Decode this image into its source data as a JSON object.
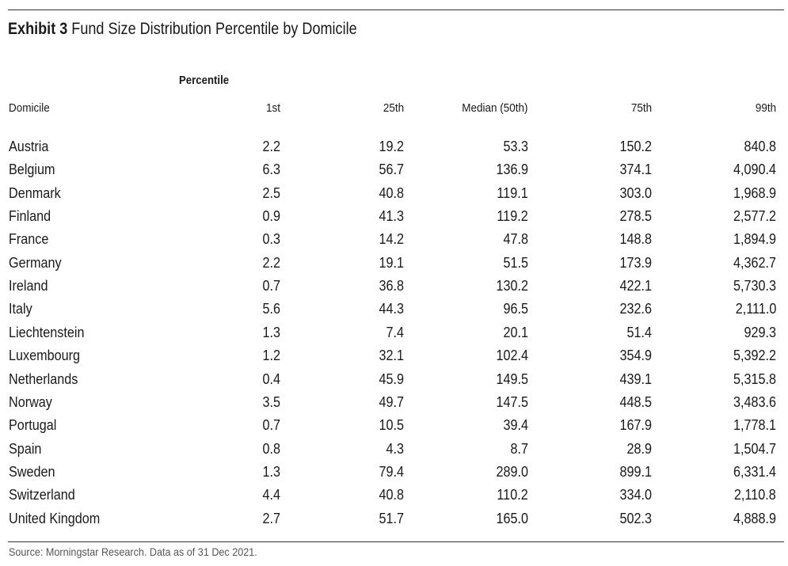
{
  "title": {
    "exhibit": "Exhibit 3",
    "text": "Fund Size Distribution Percentile by Domicile"
  },
  "source": "Source: Morningstar Research. Data as of 31 Dec 2021.",
  "chart_data": {
    "type": "table",
    "group_label": "Percentile",
    "columns": [
      "Domicile",
      "1st",
      "25th",
      "Median (50th)",
      "75th",
      "99th"
    ],
    "rows": [
      [
        "Austria",
        "2.2",
        "19.2",
        "53.3",
        "150.2",
        "840.8"
      ],
      [
        "Belgium",
        "6.3",
        "56.7",
        "136.9",
        "374.1",
        "4,090.4"
      ],
      [
        "Denmark",
        "2.5",
        "40.8",
        "119.1",
        "303.0",
        "1,968.9"
      ],
      [
        "Finland",
        "0.9",
        "41.3",
        "119.2",
        "278.5",
        "2,577.2"
      ],
      [
        "France",
        "0.3",
        "14.2",
        "47.8",
        "148.8",
        "1,894.9"
      ],
      [
        "Germany",
        "2.2",
        "19.1",
        "51.5",
        "173.9",
        "4,362.7"
      ],
      [
        "Ireland",
        "0.7",
        "36.8",
        "130.2",
        "422.1",
        "5,730.3"
      ],
      [
        "Italy",
        "5.6",
        "44.3",
        "96.5",
        "232.6",
        "2,111.0"
      ],
      [
        "Liechtenstein",
        "1.3",
        "7.4",
        "20.1",
        "51.4",
        "929.3"
      ],
      [
        "Luxembourg",
        "1.2",
        "32.1",
        "102.4",
        "354.9",
        "5,392.2"
      ],
      [
        "Netherlands",
        "0.4",
        "45.9",
        "149.5",
        "439.1",
        "5,315.8"
      ],
      [
        "Norway",
        "3.5",
        "49.7",
        "147.5",
        "448.5",
        "3,483.6"
      ],
      [
        "Portugal",
        "0.7",
        "10.5",
        "39.4",
        "167.9",
        "1,778.1"
      ],
      [
        "Spain",
        "0.8",
        "4.3",
        "8.7",
        "28.9",
        "1,504.7"
      ],
      [
        "Sweden",
        "1.3",
        "79.4",
        "289.0",
        "899.1",
        "6,331.4"
      ],
      [
        "Switzerland",
        "4.4",
        "40.8",
        "110.2",
        "334.0",
        "2,110.8"
      ],
      [
        "United Kingdom",
        "2.7",
        "51.7",
        "165.0",
        "502.3",
        "4,888.9"
      ]
    ]
  }
}
